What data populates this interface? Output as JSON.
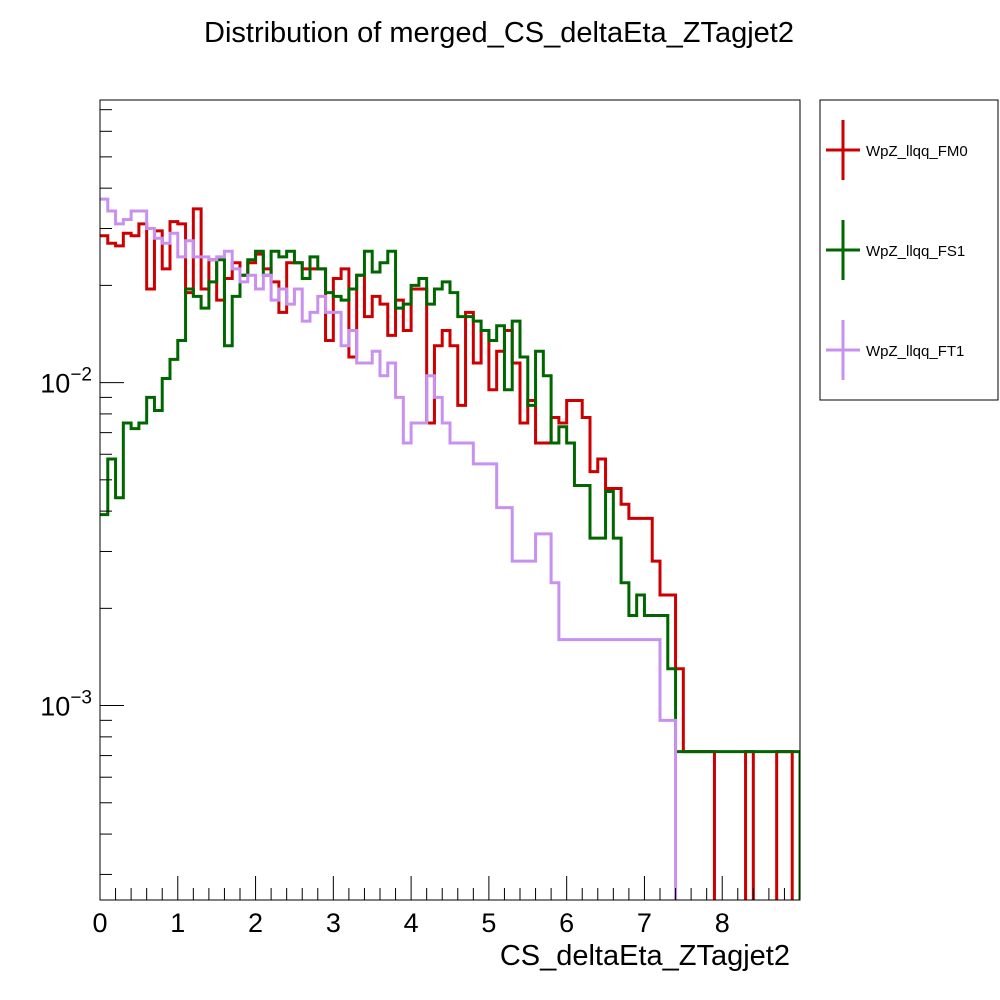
{
  "chart_data": {
    "type": "histogram",
    "title": "Distribution of merged_CS_deltaEta_ZTagjet2",
    "xlabel": "CS_deltaEta_ZTagjet2",
    "ylabel": "",
    "xlim": [
      0,
      9
    ],
    "ylim": [
      0.00025,
      0.075
    ],
    "yscale": "log",
    "bin_width": 0.1,
    "x_ticks": [
      {
        "value": 0,
        "label": "0"
      },
      {
        "value": 1,
        "label": "1"
      },
      {
        "value": 2,
        "label": "2"
      },
      {
        "value": 3,
        "label": "3"
      },
      {
        "value": 4,
        "label": "4"
      },
      {
        "value": 5,
        "label": "5"
      },
      {
        "value": 6,
        "label": "6"
      },
      {
        "value": 7,
        "label": "7"
      },
      {
        "value": 8,
        "label": "8"
      }
    ],
    "y_ticks": [
      {
        "value": 0.01,
        "base": "10",
        "exp": "−2"
      },
      {
        "value": 0.001,
        "base": "10",
        "exp": "−3"
      }
    ],
    "legend_position": "right",
    "series": [
      {
        "name": "WpZ_llqq_FM0",
        "color": "#cc0000",
        "values": [
          0.0285,
          0.027,
          0.0265,
          0.029,
          0.0285,
          0.031,
          0.0195,
          0.0295,
          0.0225,
          0.0315,
          0.031,
          0.019,
          0.0345,
          0.0195,
          0.024,
          0.018,
          0.021,
          0.0235,
          0.0215,
          0.0235,
          0.025,
          0.0225,
          0.0205,
          0.0165,
          0.0235,
          0.0235,
          0.0225,
          0.0225,
          0.0225,
          0.0135,
          0.021,
          0.0225,
          0.012,
          0.0215,
          0.016,
          0.0185,
          0.0175,
          0.014,
          0.018,
          0.0145,
          0.0195,
          0.0195,
          0.0075,
          0.013,
          0.0145,
          0.013,
          0.0085,
          0.0165,
          0.0115,
          0.0145,
          0.0095,
          0.0125,
          0.0145,
          0.0115,
          0.0075,
          0.0088,
          0.0065,
          0.0065,
          0.0078,
          0.0075,
          0.0088,
          0.0088,
          0.0078,
          0.0053,
          0.0058,
          0.0047,
          0.0047,
          0.0042,
          0.0038,
          0.0038,
          0.0038,
          0.0028,
          0.0022,
          0.0022,
          0.0013,
          0.00072,
          0.00072,
          0.00072,
          0.00072,
          0,
          0,
          0,
          0,
          0.00072,
          0,
          0,
          0,
          0.00072,
          0.00072,
          0,
          0,
          0,
          0,
          0,
          0,
          0,
          0,
          0,
          0.00072,
          0.00072,
          0,
          0,
          0,
          0,
          0,
          0,
          0,
          0,
          0,
          0,
          0,
          0,
          0,
          0,
          0,
          0,
          0,
          0,
          0,
          0,
          0,
          0,
          0,
          0,
          0,
          0,
          0,
          0,
          0,
          0,
          0,
          0,
          0,
          0,
          0,
          0,
          0,
          0,
          0
        ]
      },
      {
        "name": "WpZ_llqq_FS1",
        "color": "#006600",
        "values": [
          0.0039,
          0.0058,
          0.0044,
          0.0075,
          0.0072,
          0.0075,
          0.009,
          0.0082,
          0.0103,
          0.0118,
          0.0135,
          0.0195,
          0.0185,
          0.017,
          0.0205,
          0.024,
          0.013,
          0.0185,
          0.0215,
          0.024,
          0.0255,
          0.0215,
          0.0255,
          0.0245,
          0.0255,
          0.0235,
          0.021,
          0.0245,
          0.0225,
          0.019,
          0.0185,
          0.018,
          0.0195,
          0.0215,
          0.0255,
          0.022,
          0.0235,
          0.0255,
          0.017,
          0.0175,
          0.02,
          0.021,
          0.0175,
          0.0195,
          0.0205,
          0.019,
          0.016,
          0.016,
          0.0155,
          0.0145,
          0.0135,
          0.015,
          0.0095,
          0.0155,
          0.012,
          0.0085,
          0.0125,
          0.0105,
          0.0065,
          0.0073,
          0.0065,
          0.0048,
          0.0048,
          0.0033,
          0.0033,
          0.0046,
          0.0033,
          0.0024,
          0.0019,
          0.0022,
          0.0019,
          0.0019,
          0.0019,
          0.0013,
          0.00072,
          0.00072,
          0.00072,
          0.00072,
          0.00072,
          0.00072,
          0.00072,
          0.00072,
          0.00072,
          0.00072,
          0.00072,
          0.00072,
          0.00072,
          0.00072,
          0.00072,
          0.00072,
          0,
          0,
          0,
          0,
          0,
          0,
          0,
          0,
          0,
          0,
          0,
          0,
          0,
          0,
          0,
          0,
          0,
          0,
          0,
          0,
          0,
          0,
          0,
          0,
          0,
          0,
          0,
          0,
          0,
          0,
          0,
          0,
          0,
          0,
          0,
          0,
          0,
          0,
          0,
          0,
          0,
          0,
          0,
          0,
          0,
          0,
          0,
          0,
          0,
          0,
          0,
          0,
          0
        ]
      },
      {
        "name": "WpZ_llqq_FT1",
        "color": "#c891f0",
        "values": [
          0.037,
          0.034,
          0.031,
          0.032,
          0.034,
          0.034,
          0.03,
          0.028,
          0.027,
          0.029,
          0.0245,
          0.0275,
          0.0245,
          0.0245,
          0.024,
          0.0245,
          0.0255,
          0.0225,
          0.0205,
          0.0215,
          0.0195,
          0.0215,
          0.018,
          0.0195,
          0.0175,
          0.0195,
          0.0155,
          0.0165,
          0.0185,
          0.0165,
          0.0165,
          0.013,
          0.0145,
          0.0115,
          0.0115,
          0.0125,
          0.0105,
          0.0115,
          0.009,
          0.0065,
          0.0075,
          0.0075,
          0.0105,
          0.009,
          0.0075,
          0.0065,
          0.0065,
          0.0065,
          0.0056,
          0.0056,
          0.0056,
          0.0041,
          0.0041,
          0.0028,
          0.0028,
          0.0028,
          0.0034,
          0.0034,
          0.0024,
          0.0016,
          0.0016,
          0.0016,
          0.0016,
          0.0016,
          0.0016,
          0.0016,
          0.0016,
          0.0016,
          0.0016,
          0.0016,
          0.0016,
          0.0016,
          0.0009,
          0.0009,
          0,
          0,
          0,
          0,
          0,
          0,
          0,
          0,
          0,
          0,
          0,
          0,
          0,
          0,
          0,
          0,
          0,
          0,
          0,
          0,
          0,
          0,
          0,
          0,
          0,
          0,
          0,
          0,
          0,
          0,
          0,
          0,
          0,
          0,
          0,
          0,
          0,
          0,
          0,
          0,
          0,
          0,
          0,
          0,
          0,
          0,
          0,
          0,
          0,
          0,
          0,
          0,
          0,
          0,
          0,
          0,
          0,
          0,
          0,
          0,
          0,
          0,
          0,
          0,
          0,
          0,
          0
        ]
      }
    ]
  }
}
